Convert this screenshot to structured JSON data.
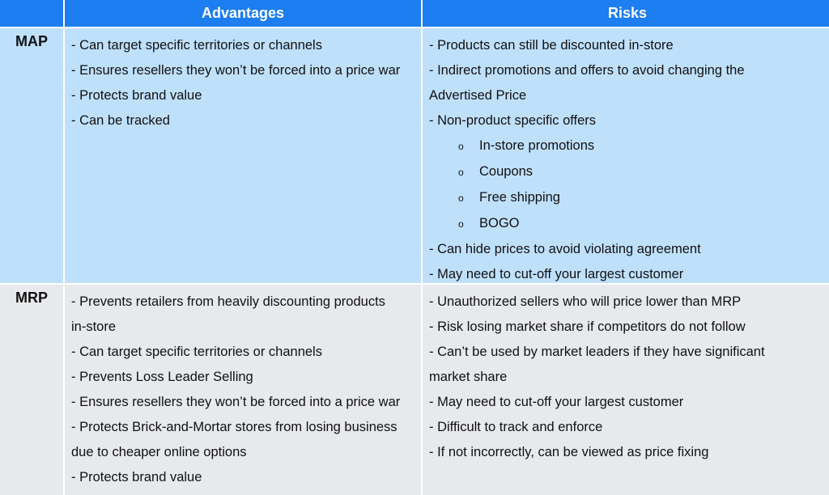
{
  "headers": {
    "advantages": "Advantages",
    "risks": "Risks"
  },
  "rows": {
    "map": {
      "label": "MAP",
      "advantages": [
        "- Can target specific territories or channels",
        "- Ensures resellers they won’t be forced into a price war",
        "- Protects brand value",
        "- Can be tracked"
      ],
      "risks": [
        "-  Products can still be discounted in-store",
        "-  Indirect promotions and offers to avoid changing the",
        "Advertised Price",
        "-  Non-product specific offers",
        "In-store promotions",
        "Coupons",
        "Free shipping",
        "BOGO",
        "-  Can hide prices to avoid violating agreement",
        "-  May need to cut-off your largest customer"
      ],
      "sub_bullet": "o"
    },
    "mrp": {
      "label": "MRP",
      "advantages": [
        "- Prevents retailers from heavily discounting products",
        "in-store",
        "- Can target specific territories or channels",
        "- Prevents Loss Leader Selling",
        "- Ensures resellers they won’t be forced into a price war",
        "- Protects Brick-and-Mortar stores from losing business",
        "due to cheaper online options",
        "- Protects brand value"
      ],
      "risks": [
        "-  Unauthorized sellers who will price lower than MRP",
        "-  Risk losing market share if competitors do not follow",
        "-  Can’t be used by market leaders if they have significant",
        "market share",
        "-  May need to cut-off your largest customer",
        "-  Difficult to track and enforce",
        "-  If not incorrectly, can be viewed as price fixing"
      ]
    }
  }
}
